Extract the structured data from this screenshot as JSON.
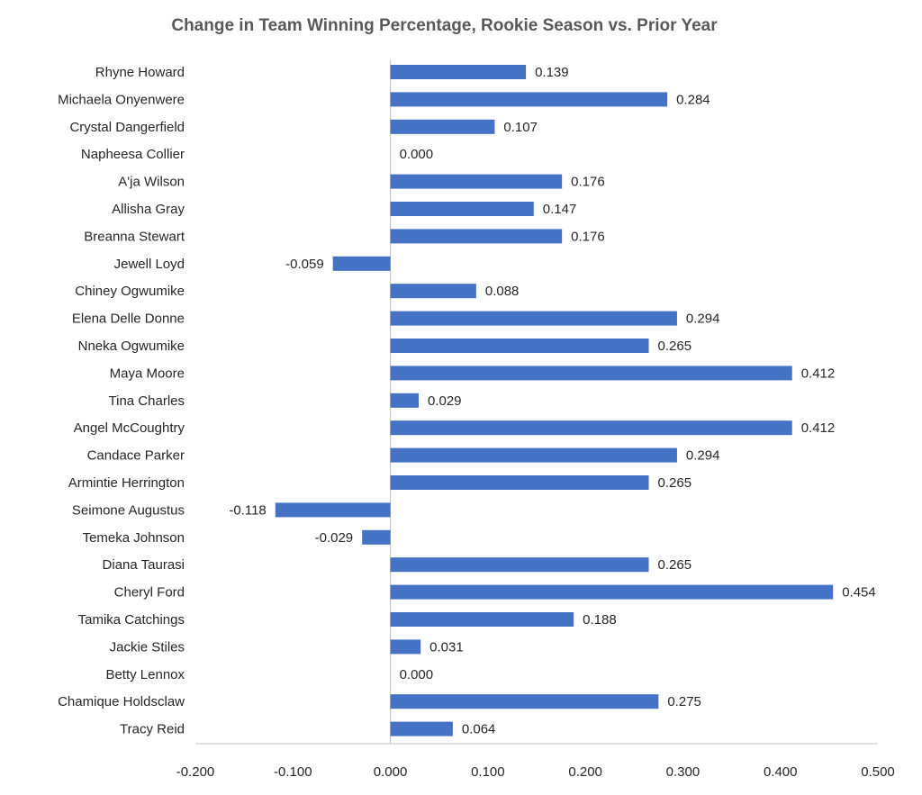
{
  "chart_data": {
    "type": "bar",
    "orientation": "horizontal",
    "title": "Change in Team Winning Percentage, Rookie Season vs. Prior Year",
    "xlabel": "",
    "ylabel": "",
    "xlim": [
      -0.2,
      0.5
    ],
    "x_ticks": [
      "-0.200",
      "-0.100",
      "0.000",
      "0.100",
      "0.200",
      "0.300",
      "0.400",
      "0.500"
    ],
    "grid": false,
    "legend": "none",
    "bar_color": "#4472C4",
    "categories": [
      "Rhyne Howard",
      "Michaela Onyenwere",
      "Crystal Dangerfield",
      "Napheesa Collier",
      "A'ja Wilson",
      "Allisha Gray",
      "Breanna Stewart",
      "Jewell Loyd",
      "Chiney Ogwumike",
      "Elena Delle Donne",
      "Nneka Ogwumike",
      "Maya Moore",
      "Tina Charles",
      "Angel McCoughtry",
      "Candace Parker",
      "Armintie Herrington",
      "Seimone Augustus",
      "Temeka Johnson",
      "Diana Taurasi",
      "Cheryl Ford",
      "Tamika Catchings",
      "Jackie Stiles",
      "Betty Lennox",
      "Chamique Holdsclaw",
      "Tracy Reid"
    ],
    "values": [
      0.139,
      0.284,
      0.107,
      0.0,
      0.176,
      0.147,
      0.176,
      -0.059,
      0.088,
      0.294,
      0.265,
      0.412,
      0.029,
      0.412,
      0.294,
      0.265,
      -0.118,
      -0.029,
      0.265,
      0.454,
      0.188,
      0.031,
      0.0,
      0.275,
      0.064
    ],
    "data_labels": [
      "0.139",
      "0.284",
      "0.107",
      "0.000",
      "0.176",
      "0.147",
      "0.176",
      "-0.059",
      "0.088",
      "0.294",
      "0.265",
      "0.412",
      "0.029",
      "0.412",
      "0.294",
      "0.265",
      "-0.118",
      "-0.029",
      "0.265",
      "0.454",
      "0.188",
      "0.031",
      "0.000",
      "0.275",
      "0.064"
    ]
  }
}
